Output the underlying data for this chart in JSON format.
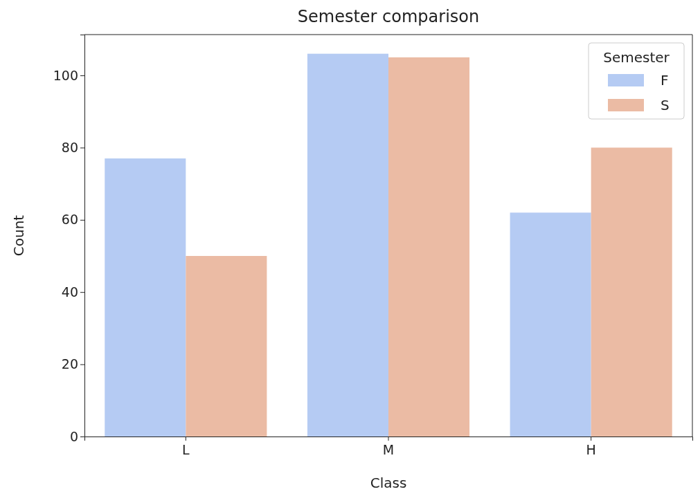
{
  "chart_data": {
    "type": "bar",
    "title": "Semester comparison",
    "xlabel": "Class",
    "ylabel": "Count",
    "legend_title": "Semester",
    "categories": [
      "L",
      "M",
      "H"
    ],
    "series": [
      {
        "name": "F",
        "color": "#b5cbf3",
        "values": [
          77,
          106,
          62
        ]
      },
      {
        "name": "S",
        "color": "#ebbba4",
        "values": [
          50,
          105,
          80
        ]
      }
    ],
    "ylim": [
      0,
      111.3
    ],
    "yticks": [
      0,
      20,
      40,
      60,
      80,
      100
    ],
    "grid": false,
    "legend": "top right"
  }
}
